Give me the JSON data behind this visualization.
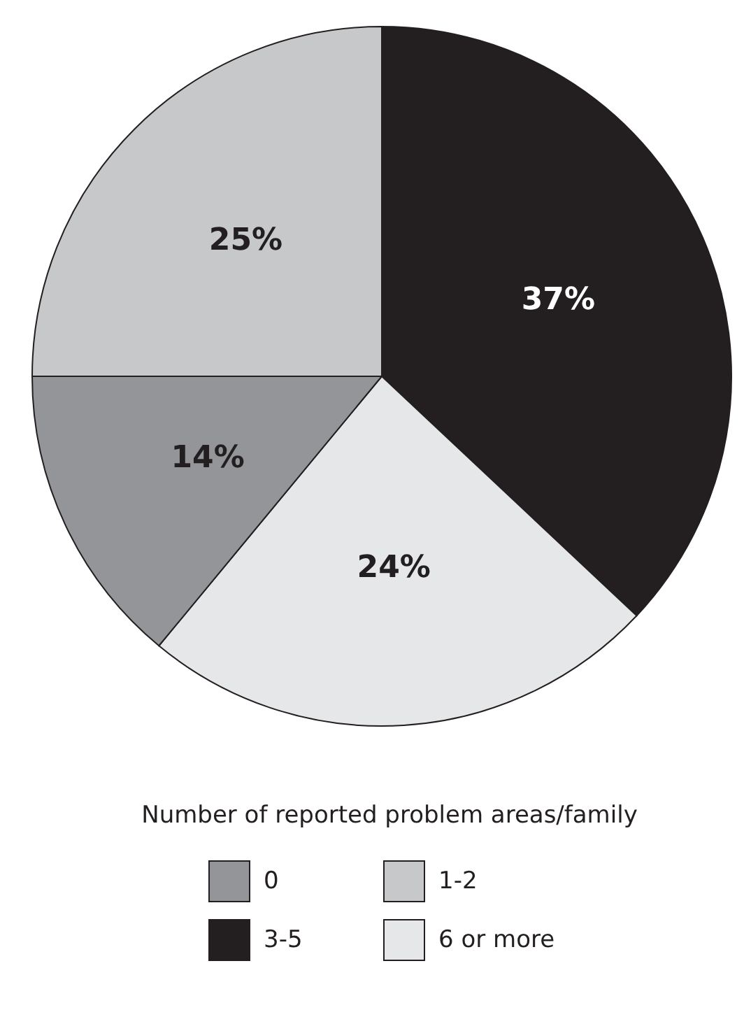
{
  "chart_data": {
    "type": "pie",
    "legend_title": "Number of reported problem areas/family",
    "legend": "bottom",
    "categories": [
      "3-5",
      "6 or more",
      "0",
      "1-2"
    ],
    "values": [
      37,
      24,
      14,
      25
    ],
    "value_labels": [
      "37%",
      "24%",
      "14%",
      "25%"
    ],
    "colors": [
      "#231f20",
      "#e6e7e8",
      "#939598",
      "#c7c8ca"
    ]
  }
}
